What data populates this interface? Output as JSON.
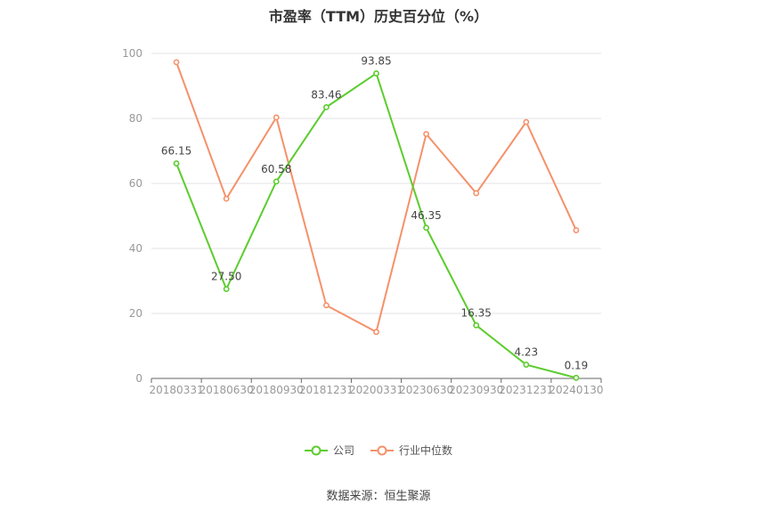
{
  "chart_data": {
    "type": "line",
    "title": "市盈率（TTM）历史百分位（%）",
    "categories": [
      "20180331",
      "20180630",
      "20180930",
      "20181231",
      "20200331",
      "20230630",
      "20230930",
      "20231231",
      "20240130"
    ],
    "series": [
      {
        "name": "公司",
        "color": "#5ccc2e",
        "values": [
          66.15,
          27.5,
          60.58,
          83.46,
          93.85,
          46.35,
          16.35,
          4.23,
          0.19
        ],
        "labels": [
          "66.15",
          "27.50",
          "60.58",
          "83.46",
          "93.85",
          "46.35",
          "16.35",
          "4.23",
          "0.19"
        ]
      },
      {
        "name": "行业中位数",
        "color": "#f5916a",
        "values": [
          97.3,
          55.3,
          80.3,
          22.5,
          14.3,
          75.2,
          57.0,
          78.9,
          45.6
        ]
      }
    ],
    "ylim": [
      0,
      100
    ],
    "yticks": [
      "0",
      "20",
      "40",
      "60",
      "80",
      "100"
    ],
    "grid": true,
    "legend": "bottom"
  },
  "source_note": "数据来源：恒生聚源"
}
